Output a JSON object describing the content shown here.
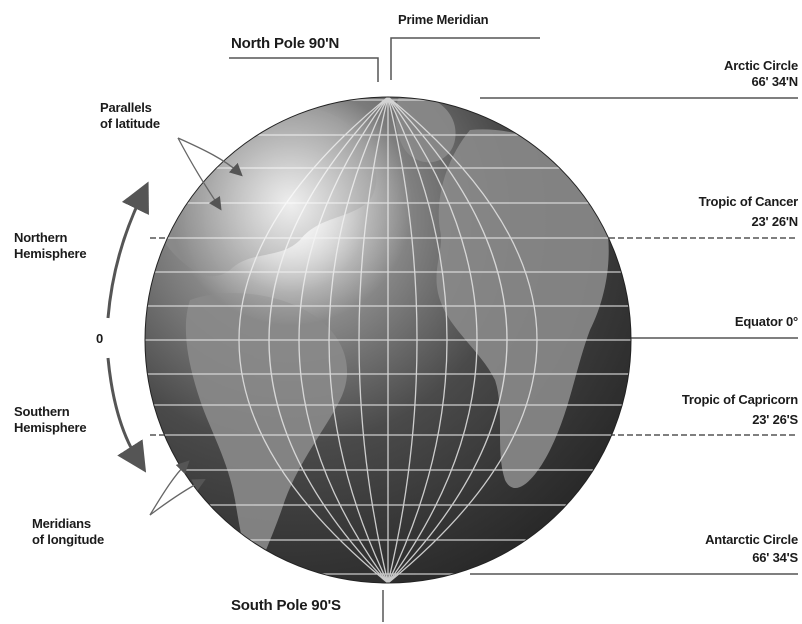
{
  "labels": {
    "prime_meridian": "Prime Meridian",
    "north_pole": "North Pole 90'N",
    "south_pole": "South Pole 90'S",
    "parallels_line1": "Parallels",
    "parallels_line2": "of latitude",
    "meridians_line1": "Meridians",
    "meridians_line2": "of longitude",
    "northern_line1": "Northern",
    "northern_line2": "Hemisphere",
    "southern_line1": "Southern",
    "southern_line2": "Hemisphere",
    "zero": "0",
    "arctic_name": "Arctic Circle",
    "arctic_value": "66' 34'N",
    "cancer_name": "Tropic of Cancer",
    "cancer_value": "23' 26'N",
    "equator": "Equator 0°",
    "capricorn_name": "Tropic of Capricorn",
    "capricorn_value": "23' 26'S",
    "antarctic_name": "Antarctic Circle",
    "antarctic_value": "66' 34'S"
  },
  "colors": {
    "globe_light": "#b9b9b9",
    "globe_dark": "#3a3a3a",
    "land": "#8e8e8e",
    "grid": "#e8e8e8",
    "line": "#555555"
  }
}
